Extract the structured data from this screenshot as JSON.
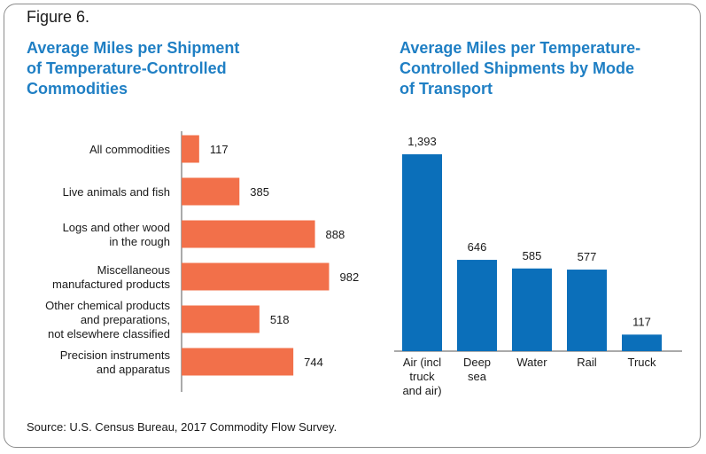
{
  "figure_label": "Figure 6.",
  "source": "Source: U.S. Census Bureau, 2017 Commodity Flow Survey.",
  "colors": {
    "title": "#1f7fc4",
    "left_bar": "#f2704a",
    "right_bar": "#0b6fba",
    "axis": "#555555"
  },
  "chart_data": [
    {
      "type": "bar",
      "orientation": "horizontal",
      "title": "Average Miles per Shipment of Temperature-Controlled Commodities",
      "title_lines": [
        "Average Miles per Shipment",
        "of Temperature-Controlled",
        "Commodities"
      ],
      "categories": [
        [
          "All commodities"
        ],
        [
          "Live animals and fish"
        ],
        [
          "Logs and other wood",
          "in the rough"
        ],
        [
          "Miscellaneous",
          "manufactured products"
        ],
        [
          "Other chemical products",
          "and preparations,",
          "not elsewhere classified"
        ],
        [
          "Precision instruments",
          "and apparatus"
        ]
      ],
      "values": [
        117,
        385,
        888,
        982,
        518,
        744
      ],
      "value_labels": [
        "117",
        "385",
        "888",
        "982",
        "518",
        "744"
      ],
      "xlim": [
        0,
        1000
      ]
    },
    {
      "type": "bar",
      "orientation": "vertical",
      "title": "Average Miles per Temperature-Controlled Shipments by Mode of Transport",
      "title_lines": [
        "Average Miles per Temperature-",
        "Controlled Shipments by Mode",
        "of Transport"
      ],
      "categories": [
        [
          "Air (incl",
          "truck",
          "and air)"
        ],
        [
          "Deep",
          "sea"
        ],
        [
          "Water"
        ],
        [
          "Rail"
        ],
        [
          "Truck"
        ]
      ],
      "values": [
        1393,
        646,
        585,
        577,
        117
      ],
      "value_labels": [
        "1,393",
        "646",
        "585",
        "577",
        "117"
      ],
      "ylim": [
        0,
        1400
      ]
    }
  ]
}
